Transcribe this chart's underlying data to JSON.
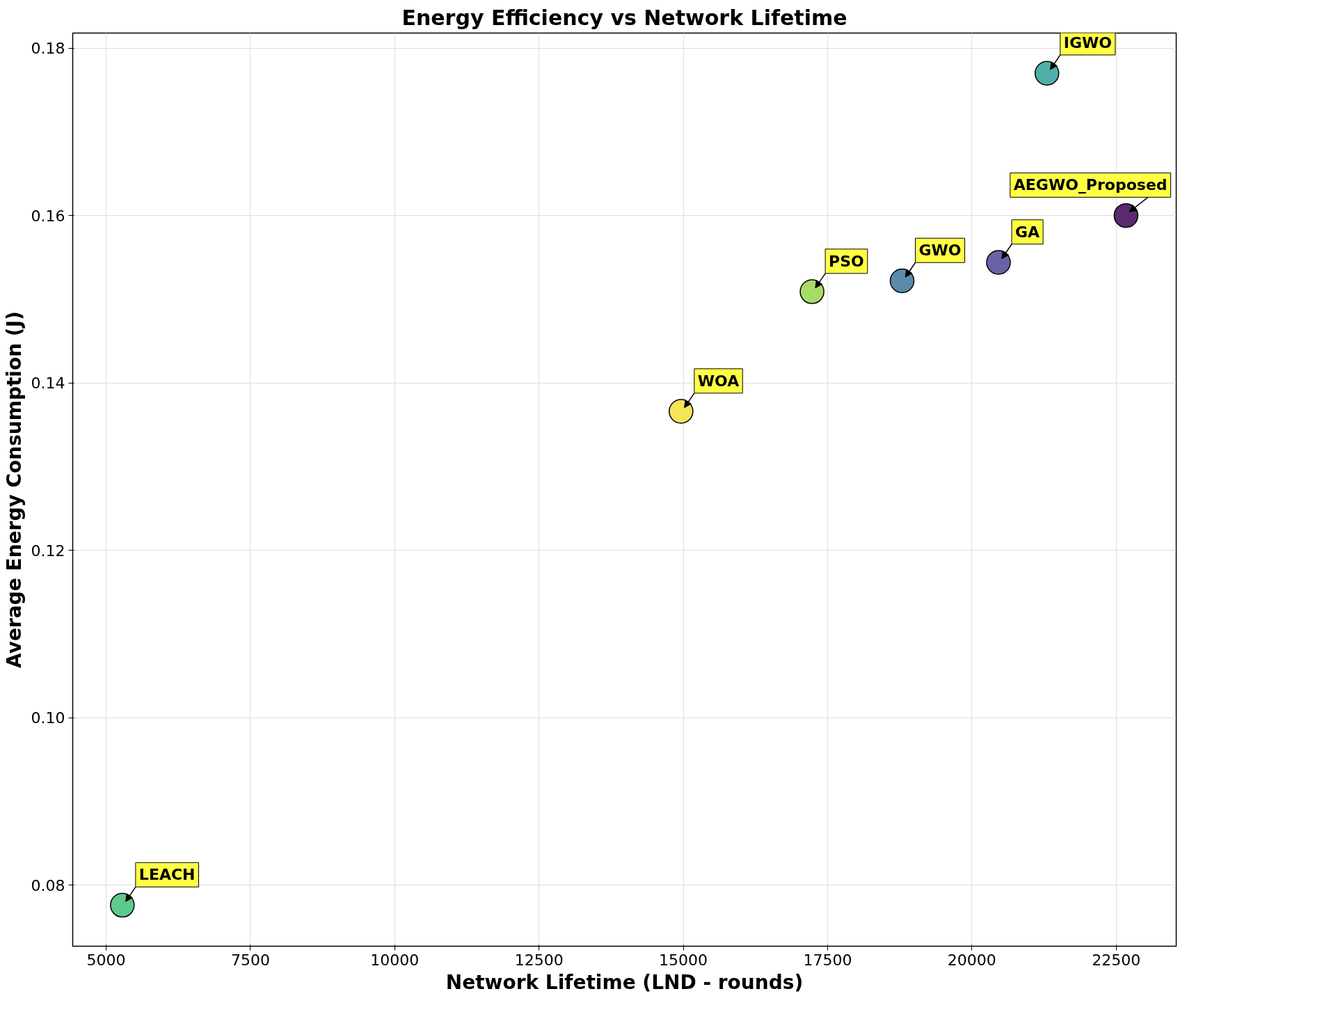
{
  "chart_data": {
    "type": "scatter",
    "title": "Energy Efficiency vs Network Lifetime",
    "xlabel": "Network Lifetime (LND - rounds)",
    "ylabel": "Average Energy Consumption (J)",
    "x": [
      22670,
      21300,
      20460,
      18790,
      17230,
      14960,
      5280
    ],
    "values": [
      0.16,
      0.177,
      0.1544,
      0.1522,
      0.1509,
      0.1366,
      0.0776
    ],
    "colors": [
      "#5c2a6e",
      "#4fb0a8",
      "#6a62a6",
      "#5b8bab",
      "#a8dc6a",
      "#f5e45a",
      "#5ec98a"
    ],
    "annotations": [
      {
        "text": "AEGWO_Proposed",
        "x": 22670,
        "y": 0.16
      },
      {
        "text": "IGWO",
        "x": 21300,
        "y": 0.177
      },
      {
        "text": "GA",
        "x": 20460,
        "y": 0.1544
      },
      {
        "text": "GWO",
        "x": 18790,
        "y": 0.1522
      },
      {
        "text": "PSO",
        "x": 17230,
        "y": 0.1509
      },
      {
        "text": "WOA",
        "x": 14960,
        "y": 0.1366
      },
      {
        "text": "LEACH",
        "x": 5280,
        "y": 0.0776
      }
    ],
    "xlim": [
      4420,
      23540
    ],
    "ylim": [
      0.0727,
      0.1818
    ],
    "xticks": [
      5000,
      7500,
      10000,
      12500,
      15000,
      17500,
      20000,
      22500
    ],
    "yticks": [
      {
        "value": 0.08,
        "label": "0.08"
      },
      {
        "value": 0.1,
        "label": "0.10"
      },
      {
        "value": 0.12,
        "label": "0.12"
      },
      {
        "value": 0.14,
        "label": "0.14"
      },
      {
        "value": 0.16,
        "label": "0.16"
      },
      {
        "value": 0.18,
        "label": "0.18"
      }
    ],
    "grid": true,
    "marker": "circle"
  }
}
